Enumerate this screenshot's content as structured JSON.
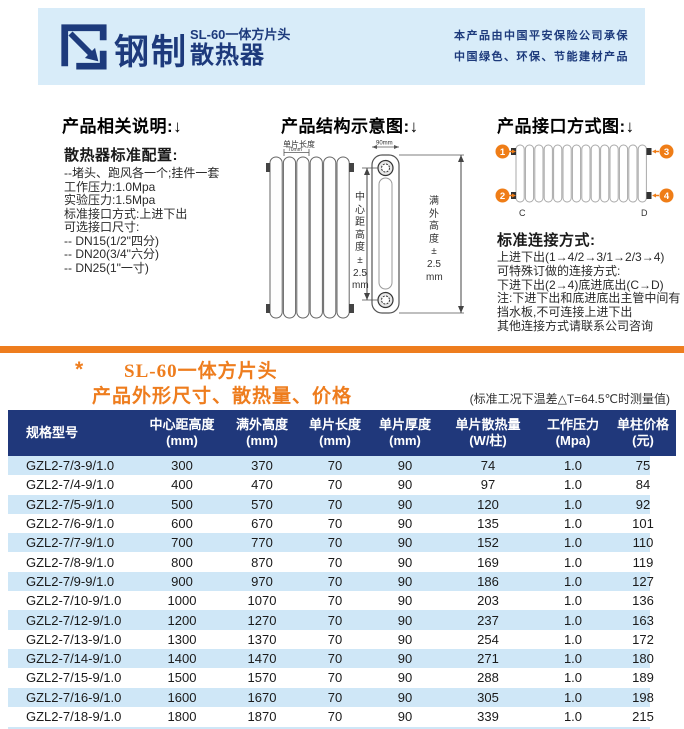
{
  "header": {
    "logo_text": "钢制",
    "product_line1": "SL-60一体方片头",
    "product_line2": "散热器",
    "insurance_line1": "本产品由中国平安保险公司承保",
    "insurance_line2": "中国绿色、环保、节能建材产品"
  },
  "spec_section": {
    "title": "产品相关说明:↓",
    "subtitle": "散热器标准配置:",
    "lines": [
      "--堵头、跑风各一个;挂件一套",
      "工作压力:1.0Mpa",
      "实验压力:1.5Mpa",
      "标准接口方式:上进下出",
      "可选接口尺寸:",
      "-- DN15(1/2\"四分)",
      "-- DN20(3/4\"六分)",
      "-- DN25(1\"一寸)"
    ]
  },
  "structure_section": {
    "title": "产品结构示意图:↓",
    "piece_length_label": "单片长度",
    "piece_length_value": "70mm",
    "thickness_value": "90mm",
    "center_height_label": "中\n心\n距\n高\n度\n±\n2.5\nmm",
    "full_height_label": "满\n外\n高\n度\n±\n2.5\nmm"
  },
  "interface_section": {
    "title": "产品接口方式图:↓",
    "ports": [
      "1",
      "2",
      "3",
      "4"
    ],
    "c_label": "C",
    "d_label": "D",
    "subtitle": "标准连接方式:",
    "lines": [
      "上进下出(1→4/2→3/1→2/3→4)",
      "可特殊订做的连接方式:",
      "下进下出(2→4)底进底出(C→D)",
      "注:下进下出和底进底出主管中间有",
      "挡水板,不可连接上进下出",
      "其他连接方式请联系公司咨询"
    ]
  },
  "price_section": {
    "star": "*",
    "title_line1": "SL-60一体方片头",
    "title_line2": "产品外形尺寸、散热量、价格",
    "note": "(标准工况下温差△T=64.5℃时测量值)"
  },
  "table": {
    "headers": [
      {
        "line1": "规格型号",
        "line2": ""
      },
      {
        "line1": "中心距高度",
        "line2": "(mm)"
      },
      {
        "line1": "满外高度",
        "line2": "(mm)"
      },
      {
        "line1": "单片长度",
        "line2": "(mm)"
      },
      {
        "line1": "单片厚度",
        "line2": "(mm)"
      },
      {
        "line1": "单片散热量",
        "line2": "(W/柱)"
      },
      {
        "line1": "工作压力",
        "line2": "(Mpa)"
      },
      {
        "line1": "单柱价格",
        "line2": "(元)"
      }
    ],
    "rows": [
      [
        "GZL2-7/3-9/1.0",
        "300",
        "370",
        "70",
        "90",
        "74",
        "1.0",
        "75"
      ],
      [
        "GZL2-7/4-9/1.0",
        "400",
        "470",
        "70",
        "90",
        "97",
        "1.0",
        "84"
      ],
      [
        "GZL2-7/5-9/1.0",
        "500",
        "570",
        "70",
        "90",
        "120",
        "1.0",
        "92"
      ],
      [
        "GZL2-7/6-9/1.0",
        "600",
        "670",
        "70",
        "90",
        "135",
        "1.0",
        "101"
      ],
      [
        "GZL2-7/7-9/1.0",
        "700",
        "770",
        "70",
        "90",
        "152",
        "1.0",
        "110"
      ],
      [
        "GZL2-7/8-9/1.0",
        "800",
        "870",
        "70",
        "90",
        "169",
        "1.0",
        "119"
      ],
      [
        "GZL2-7/9-9/1.0",
        "900",
        "970",
        "70",
        "90",
        "186",
        "1.0",
        "127"
      ],
      [
        "GZL2-7/10-9/1.0",
        "1000",
        "1070",
        "70",
        "90",
        "203",
        "1.0",
        "136"
      ],
      [
        "GZL2-7/12-9/1.0",
        "1200",
        "1270",
        "70",
        "90",
        "237",
        "1.0",
        "163"
      ],
      [
        "GZL2-7/13-9/1.0",
        "1300",
        "1370",
        "70",
        "90",
        "254",
        "1.0",
        "172"
      ],
      [
        "GZL2-7/14-9/1.0",
        "1400",
        "1470",
        "70",
        "90",
        "271",
        "1.0",
        "180"
      ],
      [
        "GZL2-7/15-9/1.0",
        "1500",
        "1570",
        "70",
        "90",
        "288",
        "1.0",
        "189"
      ],
      [
        "GZL2-7/16-9/1.0",
        "1600",
        "1670",
        "70",
        "90",
        "305",
        "1.0",
        "198"
      ],
      [
        "GZL2-7/18-9/1.0",
        "1800",
        "1870",
        "70",
        "90",
        "339",
        "1.0",
        "215"
      ]
    ]
  },
  "colors": {
    "navy": "#1d3a7c",
    "orange": "#ee7d1e",
    "port_orange": "#ef7d17",
    "band_blue": "#d8ecf9",
    "row_blue": "#cfe7f7",
    "table_header_bg": "#20387b"
  }
}
